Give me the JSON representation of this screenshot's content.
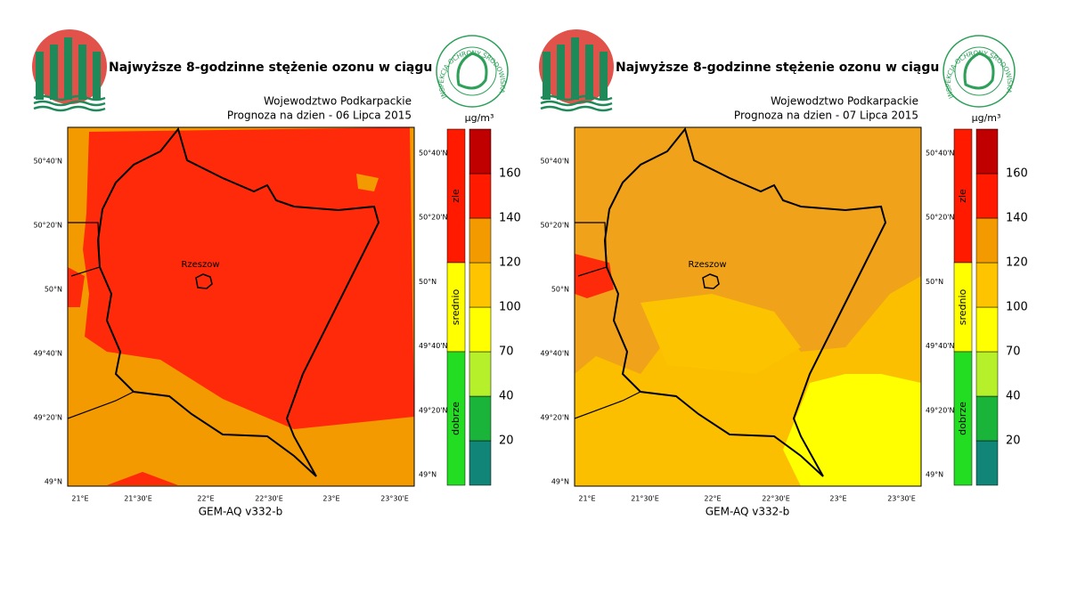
{
  "panels": [
    {
      "date_line": "Prognoza na dzien -  06 Lipca 2015"
    },
    {
      "date_line": "Prognoza na dzien -  07 Lipca 2015"
    }
  ],
  "title": "Najwyższe 8-godzinne stężenie ozonu w ciągu doby",
  "region": "Wojewodztwo Podkarpackie",
  "model": "GEM-AQ v332-b",
  "city": "Rzeszow",
  "logo_text": "INSPEKCJA OCHRONY ŚRODOWISKA",
  "lat_labels": [
    "50°40'N",
    "50°20'N",
    "50°N",
    "49°40'N",
    "49°20'N",
    "49°N"
  ],
  "lon_labels": [
    "21°E",
    "21°30'E",
    "22°E",
    "22°30'E",
    "23°E",
    "23°30'E"
  ],
  "legend": {
    "unit": "µg/m³",
    "classes": [
      {
        "name": "zle",
        "color": "#ff1a00"
      },
      {
        "name": "srednio",
        "color": "#ffff00"
      },
      {
        "name": "dobrze",
        "color": "#22dd22"
      }
    ],
    "levels": [
      20,
      40,
      70,
      100,
      120,
      140,
      160
    ],
    "colors": [
      "#118577",
      "#1ab43a",
      "#b5f02a",
      "#ffff00",
      "#ffc400",
      "#f39a00",
      "#ff1a00",
      "#c00000"
    ]
  }
}
